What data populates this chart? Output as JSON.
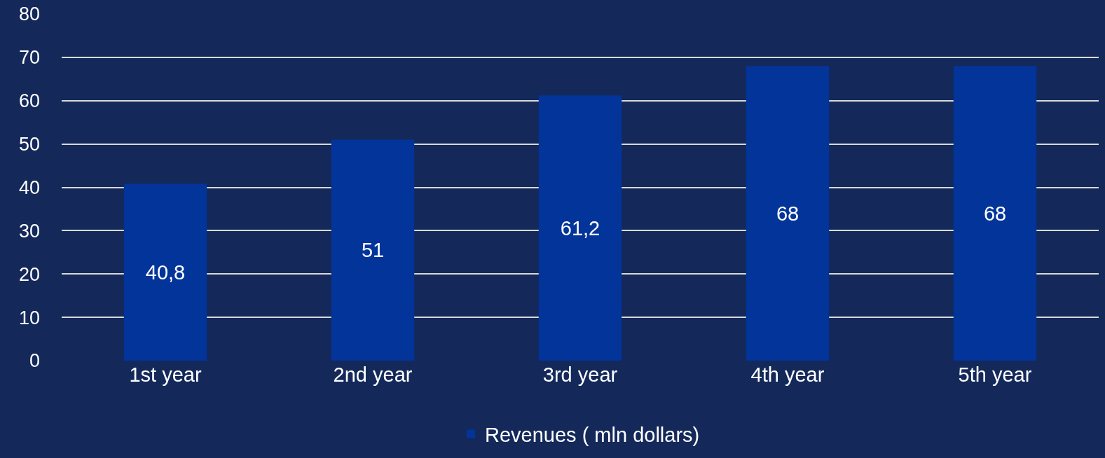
{
  "chart_data": {
    "type": "bar",
    "categories": [
      "1st year",
      "2nd year",
      "3rd year",
      "4th year",
      "5th year"
    ],
    "series": [
      {
        "name": "Revenues ( mln dollars)",
        "color": "#02349a",
        "values": [
          40.8,
          51,
          61.2,
          68,
          68
        ],
        "value_labels": [
          "40,8",
          "51",
          "61,2",
          "68",
          "68"
        ]
      }
    ],
    "ylim": [
      0,
      80
    ],
    "yticks": [
      0,
      10,
      20,
      30,
      40,
      50,
      60,
      70,
      80
    ],
    "grid": "y",
    "legend": "bottom"
  }
}
